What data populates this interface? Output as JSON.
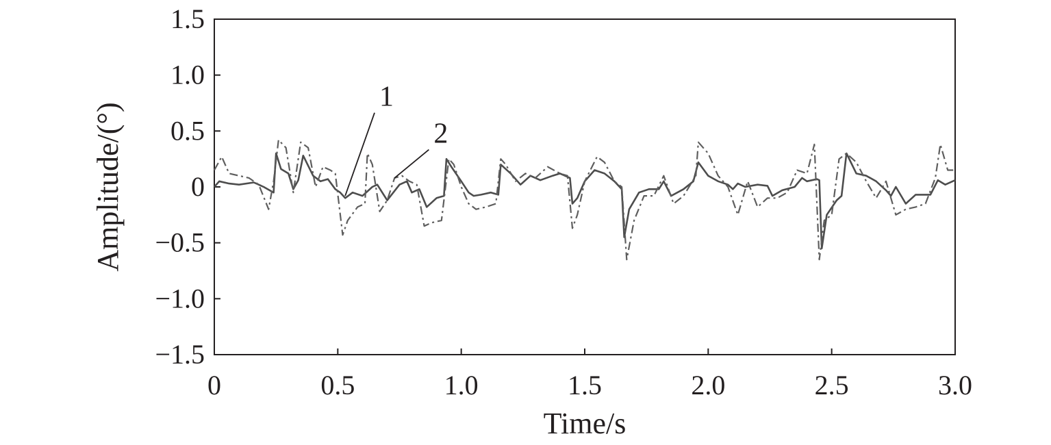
{
  "chart_data": {
    "type": "line",
    "xlabel": "Time/s",
    "ylabel": "Amplitude/(°)",
    "xlim": [
      0,
      3.0
    ],
    "ylim": [
      -1.5,
      1.5
    ],
    "x_ticks": [
      0,
      0.5,
      1.0,
      1.5,
      2.0,
      2.5,
      3.0
    ],
    "x_tick_labels": [
      "0",
      "0.5",
      "1.0",
      "1.5",
      "2.0",
      "2.5",
      "3.0"
    ],
    "y_ticks": [
      1.5,
      1.0,
      0.5,
      0,
      -0.5,
      -1.0,
      -1.5
    ],
    "y_tick_labels": [
      "1.5",
      "1.0",
      "0.5",
      "0",
      "−0.5",
      "−1.0",
      "−1.5"
    ],
    "grid": false,
    "annotations": [
      {
        "text": "1",
        "series": 0,
        "target": [
          0.53,
          -0.08
        ],
        "label_at": [
          0.66,
          0.7
        ]
      },
      {
        "text": "2",
        "series": 1,
        "target": [
          0.73,
          0.08
        ],
        "label_at": [
          0.88,
          0.37
        ]
      }
    ],
    "series": [
      {
        "style": "solid",
        "color": "#4d4d4d",
        "x": [
          0,
          0.02,
          0.06,
          0.1,
          0.16,
          0.2,
          0.24,
          0.25,
          0.27,
          0.3,
          0.32,
          0.34,
          0.36,
          0.4,
          0.43,
          0.46,
          0.49,
          0.51,
          0.53,
          0.56,
          0.6,
          0.64,
          0.66,
          0.7,
          0.75,
          0.78,
          0.8,
          0.83,
          0.86,
          0.9,
          0.93,
          0.94,
          0.96,
          1.0,
          1.03,
          1.05,
          1.08,
          1.12,
          1.15,
          1.16,
          1.2,
          1.24,
          1.28,
          1.32,
          1.37,
          1.4,
          1.44,
          1.45,
          1.47,
          1.5,
          1.54,
          1.58,
          1.62,
          1.65,
          1.66,
          1.68,
          1.72,
          1.76,
          1.8,
          1.82,
          1.85,
          1.9,
          1.94,
          1.96,
          2.0,
          2.04,
          2.08,
          2.1,
          2.12,
          2.15,
          2.2,
          2.24,
          2.26,
          2.3,
          2.35,
          2.38,
          2.4,
          2.44,
          2.45,
          2.46,
          2.48,
          2.52,
          2.54,
          2.56,
          2.6,
          2.64,
          2.68,
          2.72,
          2.74,
          2.76,
          2.8,
          2.84,
          2.86,
          2.9,
          2.93,
          2.96,
          3.0
        ],
        "y": [
          0.0,
          0.05,
          0.03,
          0.02,
          0.04,
          0.0,
          -0.05,
          0.3,
          0.16,
          0.12,
          -0.02,
          0.06,
          0.28,
          0.1,
          0.05,
          0.07,
          -0.02,
          -0.05,
          -0.1,
          -0.05,
          -0.08,
          0.0,
          0.02,
          -0.12,
          0.02,
          0.05,
          -0.05,
          -0.02,
          -0.18,
          -0.1,
          -0.08,
          0.25,
          0.18,
          0.05,
          -0.05,
          -0.08,
          -0.07,
          -0.05,
          -0.07,
          0.2,
          0.12,
          0.02,
          0.1,
          0.06,
          0.1,
          0.12,
          0.08,
          -0.15,
          -0.1,
          0.05,
          0.15,
          0.12,
          0.05,
          -0.02,
          -0.45,
          -0.2,
          -0.05,
          -0.02,
          -0.02,
          0.05,
          -0.08,
          -0.02,
          0.05,
          0.22,
          0.1,
          0.05,
          0.02,
          -0.02,
          0.03,
          0.0,
          0.02,
          0.01,
          -0.08,
          -0.03,
          0.0,
          0.08,
          0.05,
          0.07,
          0.06,
          -0.55,
          -0.25,
          -0.12,
          -0.08,
          0.3,
          0.12,
          0.1,
          0.05,
          -0.03,
          -0.08,
          0.0,
          -0.15,
          -0.07,
          -0.07,
          -0.07,
          0.06,
          0.02,
          0.06
        ]
      },
      {
        "style": "dashdot",
        "color": "#5e5e5e",
        "x": [
          0,
          0.03,
          0.06,
          0.1,
          0.14,
          0.18,
          0.22,
          0.24,
          0.26,
          0.29,
          0.32,
          0.35,
          0.38,
          0.41,
          0.44,
          0.47,
          0.49,
          0.52,
          0.54,
          0.58,
          0.61,
          0.62,
          0.64,
          0.67,
          0.7,
          0.73,
          0.76,
          0.79,
          0.82,
          0.85,
          0.88,
          0.92,
          0.95,
          0.97,
          1.0,
          1.03,
          1.06,
          1.1,
          1.14,
          1.16,
          1.18,
          1.22,
          1.26,
          1.3,
          1.35,
          1.4,
          1.43,
          1.45,
          1.47,
          1.5,
          1.55,
          1.58,
          1.62,
          1.65,
          1.67,
          1.7,
          1.74,
          1.78,
          1.82,
          1.86,
          1.9,
          1.95,
          1.96,
          2.0,
          2.04,
          2.08,
          2.12,
          2.16,
          2.2,
          2.24,
          2.28,
          2.32,
          2.36,
          2.4,
          2.43,
          2.45,
          2.47,
          2.5,
          2.53,
          2.56,
          2.6,
          2.64,
          2.68,
          2.72,
          2.74,
          2.76,
          2.8,
          2.84,
          2.88,
          2.92,
          2.94,
          2.97,
          3.0
        ],
        "y": [
          0.15,
          0.27,
          0.12,
          0.1,
          0.08,
          0.02,
          -0.2,
          0.05,
          0.42,
          0.35,
          -0.05,
          0.4,
          0.35,
          0.0,
          0.18,
          0.15,
          0.12,
          -0.43,
          -0.3,
          -0.18,
          -0.15,
          0.3,
          0.2,
          -0.22,
          -0.12,
          0.08,
          0.1,
          0.05,
          0.02,
          -0.35,
          -0.32,
          -0.3,
          0.25,
          0.2,
          0.0,
          -0.15,
          -0.2,
          -0.18,
          -0.15,
          0.25,
          0.2,
          0.05,
          0.12,
          0.08,
          0.18,
          0.12,
          0.1,
          -0.37,
          -0.25,
          0.05,
          0.27,
          0.22,
          0.05,
          0.0,
          -0.65,
          -0.3,
          -0.08,
          -0.08,
          0.1,
          -0.15,
          -0.08,
          0.1,
          0.4,
          0.3,
          0.1,
          0.0,
          -0.25,
          0.05,
          -0.18,
          -0.1,
          -0.1,
          -0.05,
          0.15,
          0.12,
          0.38,
          -0.65,
          -0.3,
          -0.25,
          0.25,
          0.3,
          0.22,
          0.05,
          -0.1,
          0.05,
          -0.1,
          -0.25,
          -0.2,
          -0.18,
          -0.15,
          0.08,
          0.38,
          0.15,
          0.15
        ]
      }
    ]
  }
}
